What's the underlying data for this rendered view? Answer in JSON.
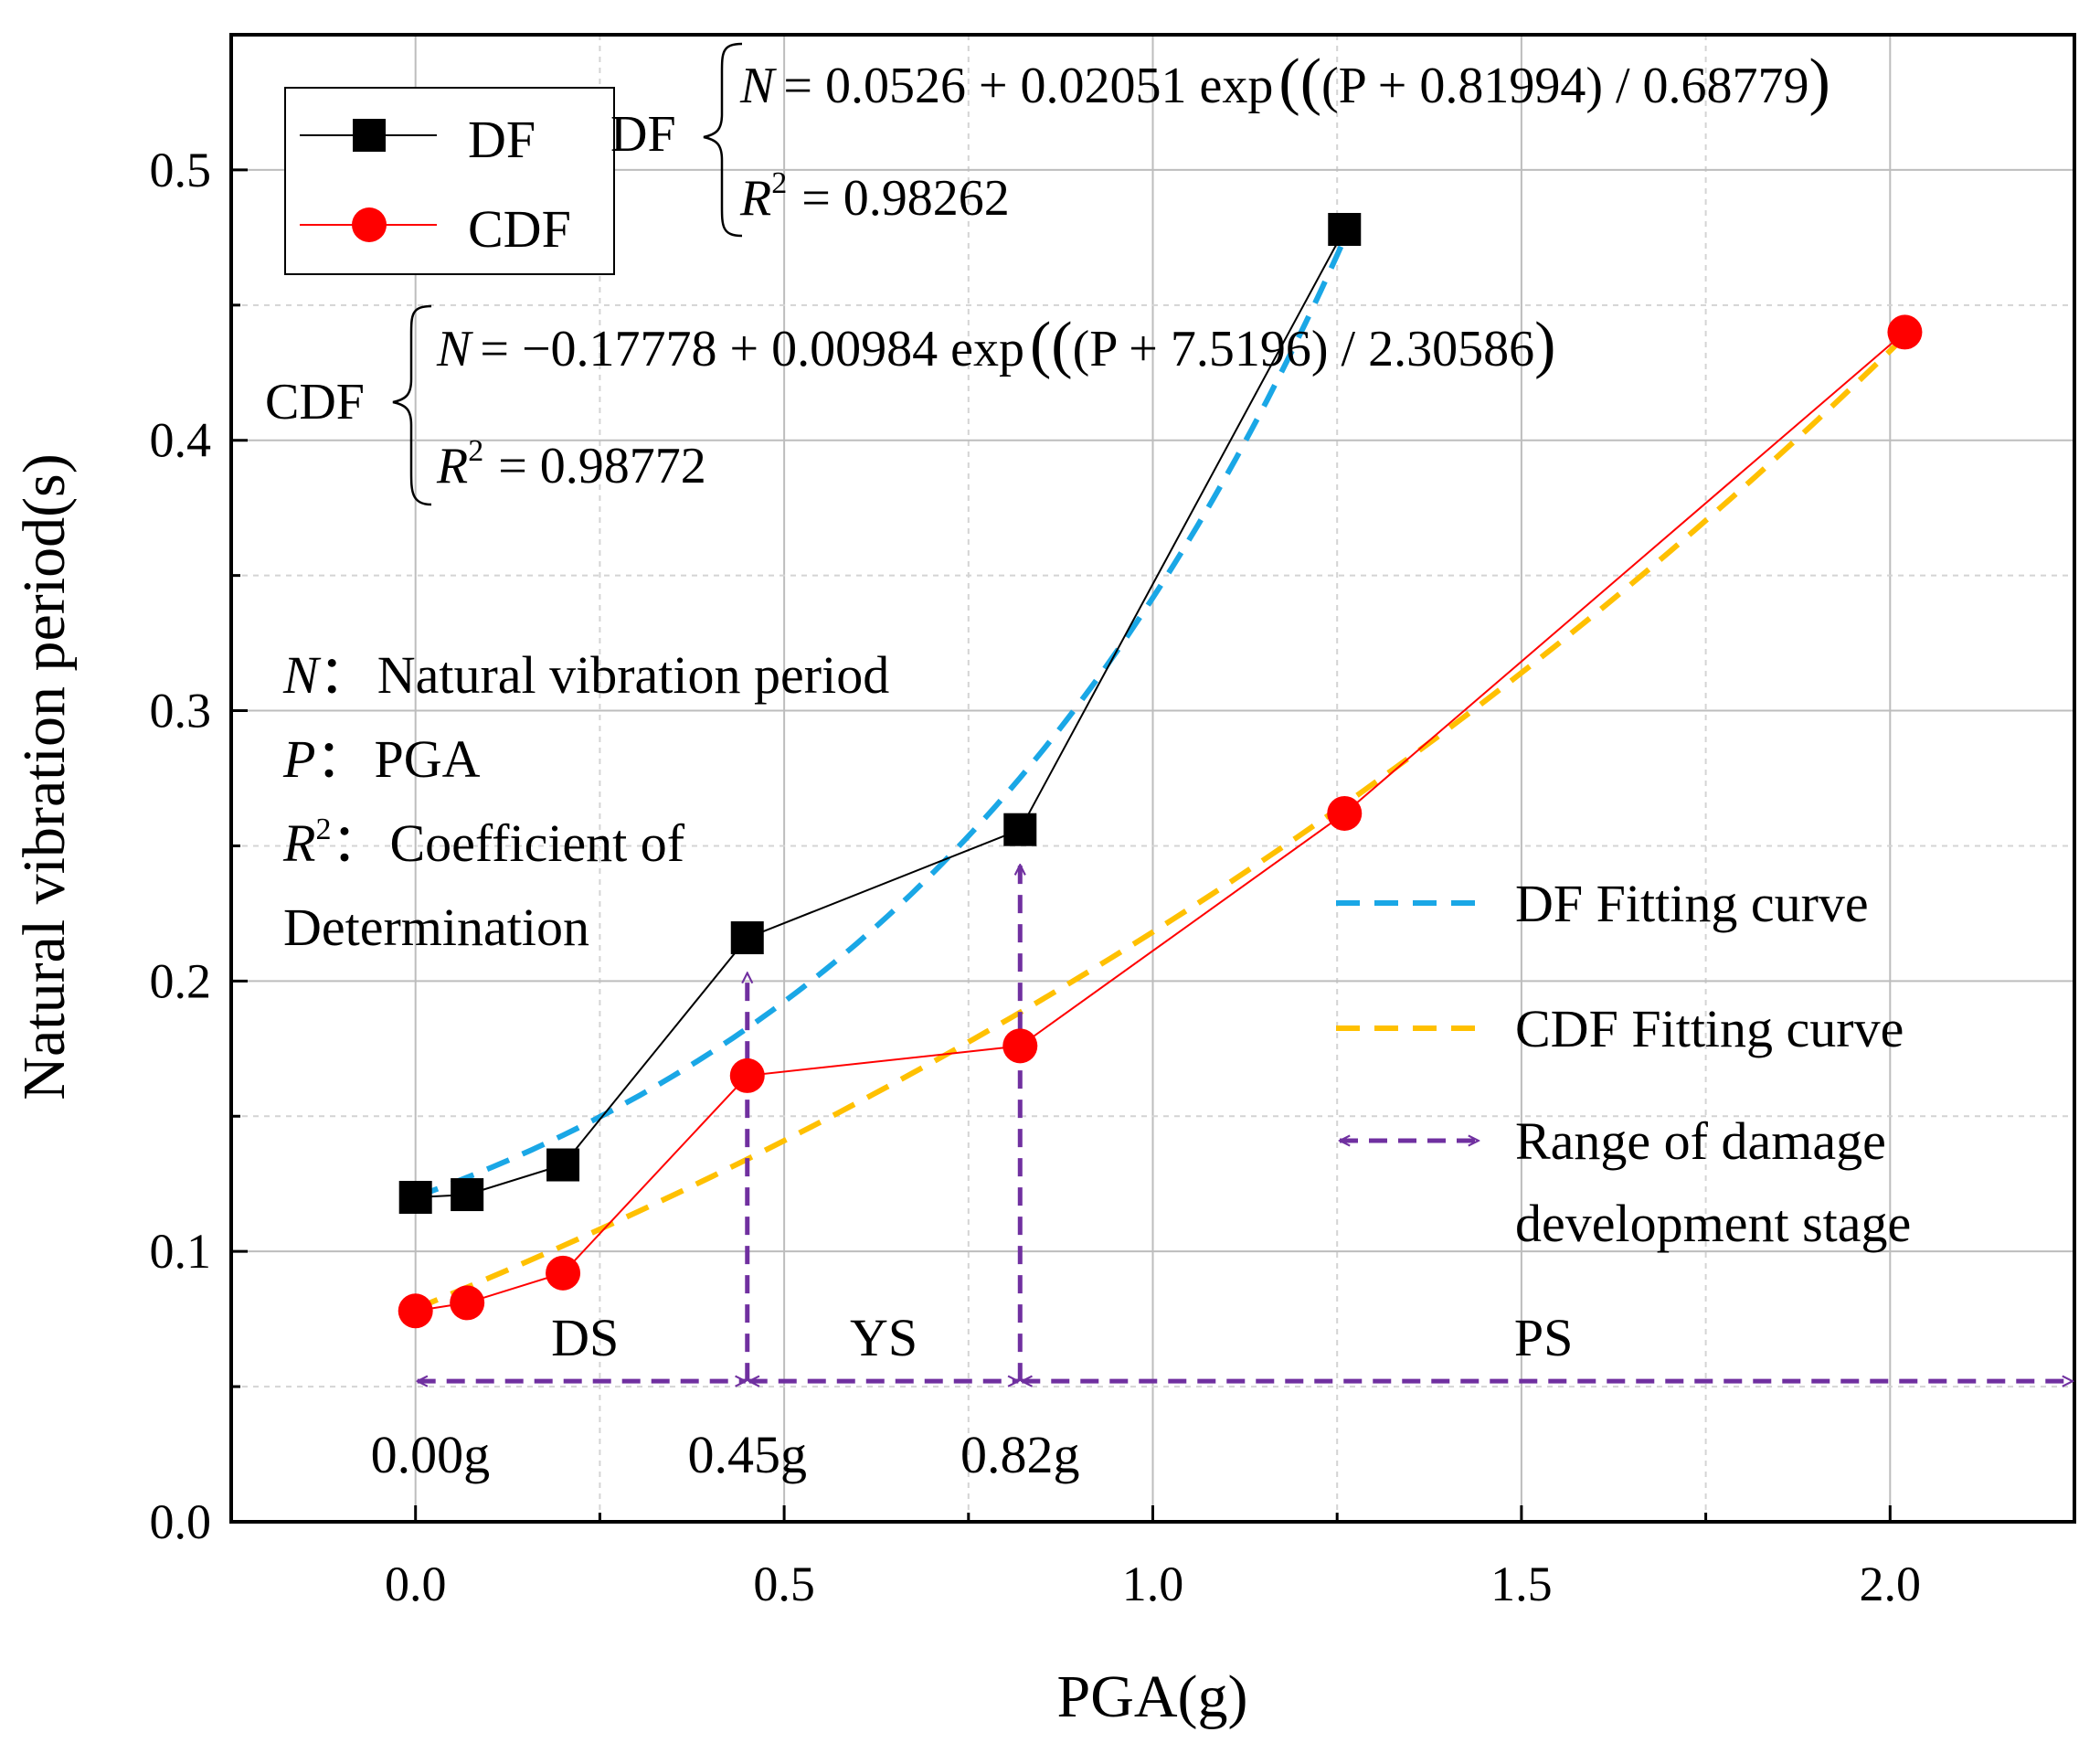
{
  "chart_data": {
    "type": "line",
    "xlabel": "PGA(g)",
    "ylabel": "Natural vibration period(s)",
    "xlim": [
      -0.25,
      2.25
    ],
    "ylim": [
      0.0,
      0.55
    ],
    "xticks": [
      0.0,
      0.5,
      1.0,
      1.5,
      2.0
    ],
    "xtick_labels": [
      "0.0",
      "0.5",
      "1.0",
      "1.5",
      "2.0"
    ],
    "yticks": [
      0.0,
      0.1,
      0.2,
      0.3,
      0.4,
      0.5
    ],
    "ytick_labels": [
      "0.0",
      "0.1",
      "0.2",
      "0.3",
      "0.4",
      "0.5"
    ],
    "grid": true,
    "series": [
      {
        "name": "DF",
        "marker": "square",
        "color": "#000000",
        "x": [
          0.0,
          0.07,
          0.2,
          0.45,
          0.82,
          1.26
        ],
        "y": [
          0.12,
          0.121,
          0.132,
          0.216,
          0.256,
          0.478
        ]
      },
      {
        "name": "CDF",
        "marker": "circle",
        "color": "#ff0000",
        "x": [
          0.0,
          0.07,
          0.2,
          0.45,
          0.82,
          1.26,
          2.02
        ],
        "y": [
          0.078,
          0.081,
          0.092,
          0.165,
          0.176,
          0.262,
          0.44
        ]
      }
    ],
    "fits": [
      {
        "name": "DF Fitting curve",
        "color": "#1aa7e6",
        "model": "exp",
        "a": 0.0526,
        "b": 0.02051,
        "c": 0.81994,
        "d": 0.68779,
        "x_range": [
          0.0,
          1.26
        ]
      },
      {
        "name": "CDF Fitting curve",
        "color": "#ffc000",
        "model": "exp",
        "a": -0.17778,
        "b": 0.00984,
        "c": 7.5196,
        "d": 2.30586,
        "x_range": [
          0.0,
          2.02
        ]
      }
    ],
    "stage_arrows": {
      "color": "#7030a0",
      "y": 0.052,
      "boundaries": [
        0.0,
        0.45,
        0.82,
        2.25
      ],
      "stages": [
        {
          "label": "DS",
          "x": 0.23
        },
        {
          "label": "YS",
          "x": 0.635
        },
        {
          "label": "PS",
          "x": 1.53
        }
      ],
      "boundary_labels": [
        {
          "text": "0.00g",
          "x": 0.02
        },
        {
          "text": "0.45g",
          "x": 0.45
        },
        {
          "text": "0.82g",
          "x": 0.82
        }
      ],
      "vertical_arrows": [
        {
          "x": 0.45,
          "y_from": 0.052,
          "y_to": 0.203
        },
        {
          "x": 0.82,
          "y_from": 0.052,
          "y_to": 0.243
        }
      ]
    },
    "legend": {
      "placement": "top-left",
      "entries": [
        "DF",
        "CDF"
      ]
    },
    "legend2": {
      "placement": "right",
      "entries": [
        "DF Fitting curve",
        "CDF Fitting curve"
      ],
      "range_entry": [
        "Range of damage",
        "development stage"
      ]
    },
    "equations": {
      "df": {
        "label": "DF",
        "n_eq": "= 0.0526 + 0.02051 exp",
        "n_args": "(P + 0.81994) / 0.68779",
        "r2": "= 0.98262"
      },
      "cdf": {
        "label": "CDF",
        "n_eq": "= −0.17778 + 0.00984 exp",
        "n_args": "(P + 7.5196) / 2.30586",
        "r2": "= 0.98772"
      }
    },
    "notes": [
      {
        "sym": "N",
        "text": "Natural vibration period"
      },
      {
        "sym": "P",
        "text": "PGA"
      },
      {
        "sym": "R",
        "text": "Coefficient of"
      },
      {
        "sym": "",
        "text": "Determination"
      }
    ]
  }
}
